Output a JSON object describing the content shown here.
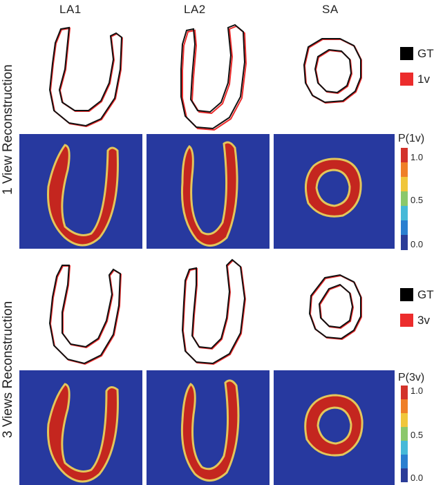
{
  "columns": [
    "LA1",
    "LA2",
    "SA"
  ],
  "rows": [
    {
      "label": "1 View Reconstruction",
      "legend": [
        {
          "label": "GT",
          "color": "#000000"
        },
        {
          "label": "1v",
          "color": "#ec2c2c"
        }
      ],
      "colorbar": {
        "title": "P(1v)",
        "ticks": [
          "1.0",
          "0.5",
          "0.0"
        ]
      }
    },
    {
      "label": "3 Views Reconstruction",
      "legend": [
        {
          "label": "GT",
          "color": "#000000"
        },
        {
          "label": "3v",
          "color": "#ec2c2c"
        }
      ],
      "colorbar": {
        "title": "P(3v)",
        "ticks": [
          "1.0",
          "0.5",
          "0.0"
        ]
      }
    }
  ],
  "colors": {
    "background_blue": "#27399f",
    "prob_high": "#c4261f",
    "prob_mid": "#e3c65a",
    "gt_contour": "#000000",
    "recon_contour": "#ec2c2c",
    "colorbar_scale": [
      "#2a3c98",
      "#2a7fd0",
      "#46b9d8",
      "#8bc86b",
      "#f0c63a",
      "#ef7f27",
      "#d2322a"
    ]
  }
}
